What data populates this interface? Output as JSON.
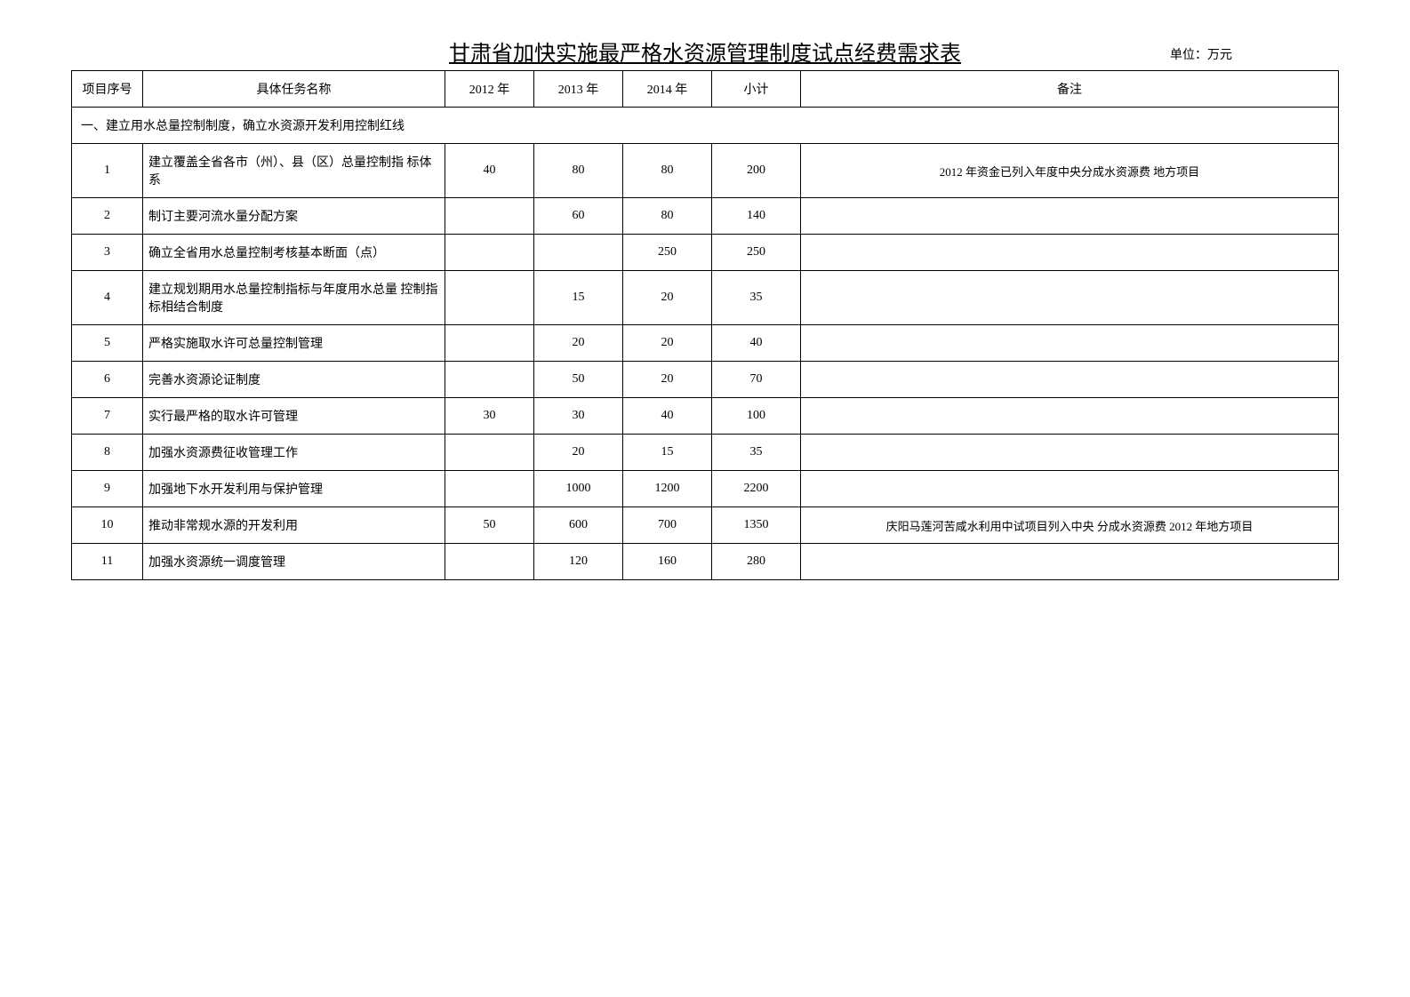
{
  "title": "甘肃省加快实施最严格水资源管理制度试点经费需求表",
  "unit_label": "单位：万元",
  "headers": {
    "seq": "项目序号",
    "task": "具体任务名称",
    "y2012": "2012 年",
    "y2013": "2013 年",
    "y2014": "2014 年",
    "subtotal": "小计",
    "remark": "备注"
  },
  "section1": {
    "label": "一、建立用水总量控制制度，确立水资源开发利用控制红线"
  },
  "rows": [
    {
      "seq": "1",
      "task": "建立覆盖全省各市（州）、县（区）总量控制指 标体系",
      "y2012": "40",
      "y2013": "80",
      "y2014": "80",
      "subtotal": "200",
      "remark": "2012 年资金已列入年度中央分成水资源费 地方项目"
    },
    {
      "seq": "2",
      "task": "制订主要河流水量分配方案",
      "y2012": "",
      "y2013": "60",
      "y2014": "80",
      "subtotal": "140",
      "remark": ""
    },
    {
      "seq": "3",
      "task": "确立全省用水总量控制考核基本断面（点）",
      "y2012": "",
      "y2013": "",
      "y2014": "250",
      "subtotal": "250",
      "remark": ""
    },
    {
      "seq": "4",
      "task": "建立规划期用水总量控制指标与年度用水总量 控制指标相结合制度",
      "y2012": "",
      "y2013": "15",
      "y2014": "20",
      "subtotal": "35",
      "remark": ""
    },
    {
      "seq": "5",
      "task": "严格实施取水许可总量控制管理",
      "y2012": "",
      "y2013": "20",
      "y2014": "20",
      "subtotal": "40",
      "remark": ""
    },
    {
      "seq": "6",
      "task": "完善水资源论证制度",
      "y2012": "",
      "y2013": "50",
      "y2014": "20",
      "subtotal": "70",
      "remark": ""
    },
    {
      "seq": "7",
      "task": "实行最严格的取水许可管理",
      "y2012": "30",
      "y2013": "30",
      "y2014": "40",
      "subtotal": "100",
      "remark": ""
    },
    {
      "seq": "8",
      "task": "加强水资源费征收管理工作",
      "y2012": "",
      "y2013": "20",
      "y2014": "15",
      "subtotal": "35",
      "remark": ""
    },
    {
      "seq": "9",
      "task": "加强地下水开发利用与保护管理",
      "y2012": "",
      "y2013": "1000",
      "y2014": "1200",
      "subtotal": "2200",
      "remark": ""
    },
    {
      "seq": "10",
      "task": "推动非常规水源的开发利用",
      "y2012": "50",
      "y2013": "600",
      "y2014": "700",
      "subtotal": "1350",
      "remark": "庆阳马莲河苦咸水利用中试项目列入中央 分成水资源费 2012 年地方项目"
    },
    {
      "seq": "11",
      "task": "加强水资源统一调度管理",
      "y2012": "",
      "y2013": "120",
      "y2014": "160",
      "subtotal": "280",
      "remark": ""
    }
  ]
}
